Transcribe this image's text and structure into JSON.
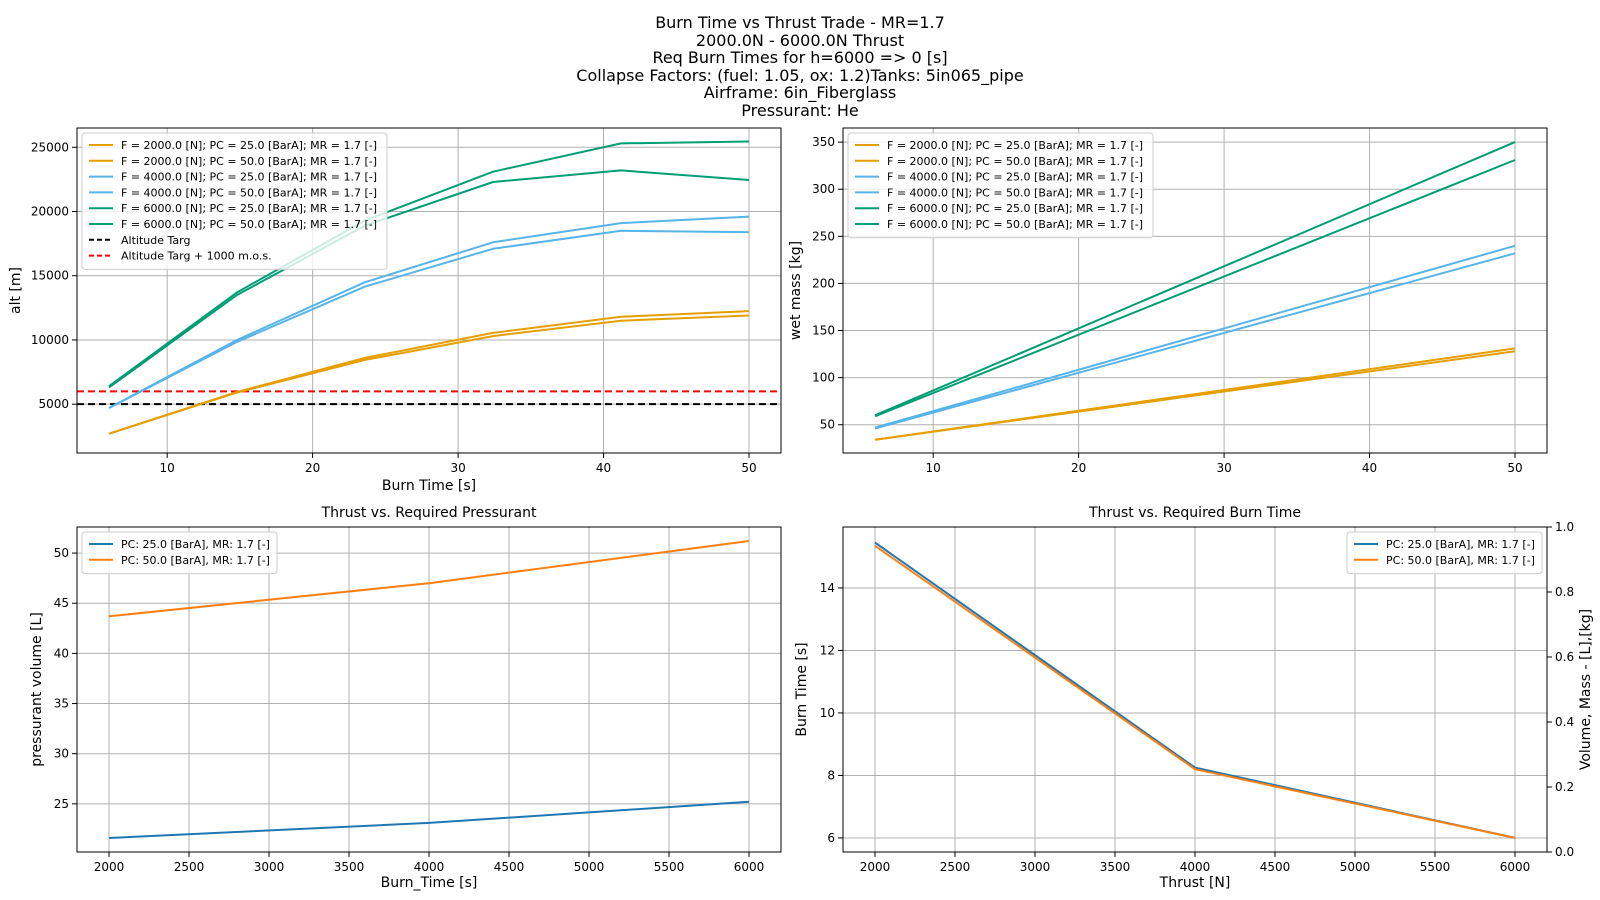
{
  "figure": {
    "suptitle_lines": [
      "Burn Time vs Thrust Trade - MR=1.7",
      "2000.0N - 6000.0N Thrust",
      "Req Burn Times for h=6000 => 0 [s]",
      "Collapse Factors: (fuel: 1.05, ox: 1.2)Tanks: 5in065_pipe",
      "Airframe: 6in_Fiberglass",
      "Pressurant: He"
    ]
  },
  "chart_data": [
    {
      "type": "line",
      "title": "",
      "xlabel": "Burn Time [s]",
      "ylabel": "alt [m]",
      "xlim": [
        3.8,
        52.2
      ],
      "ylim": [
        1200,
        26500
      ],
      "xticks": [
        10,
        20,
        30,
        40,
        50
      ],
      "yticks": [
        5000,
        10000,
        15000,
        20000,
        25000
      ],
      "grid": true,
      "legend_position": "upper left",
      "series": [
        {
          "name": "F = 2000.0 [N]; PC = 25.0 [BarA]; MR = 1.7 [-]",
          "color": "#E69F00",
          "x": [
            6,
            14.8,
            23.6,
            32.4,
            41.2,
            50
          ],
          "y": [
            2700,
            5950,
            8600,
            10550,
            11800,
            12250
          ]
        },
        {
          "name": "F = 2000.0 [N]; PC = 50.0 [BarA]; MR = 1.7 [-]",
          "color": "#E69F00",
          "x": [
            6,
            14.8,
            23.6,
            32.4,
            41.2,
            50
          ],
          "y": [
            2700,
            5900,
            8450,
            10300,
            11500,
            11900
          ]
        },
        {
          "name": "F = 4000.0 [N]; PC = 25.0 [BarA]; MR = 1.7 [-]",
          "color": "#56B4E9",
          "x": [
            6,
            14.8,
            23.6,
            32.4,
            41.2,
            50
          ],
          "y": [
            4700,
            10000,
            14500,
            17600,
            19100,
            19600
          ]
        },
        {
          "name": "F = 4000.0 [N]; PC = 50.0 [BarA]; MR = 1.7 [-]",
          "color": "#56B4E9",
          "x": [
            6,
            14.8,
            23.6,
            32.4,
            41.2,
            50
          ],
          "y": [
            4700,
            9850,
            14150,
            17100,
            18500,
            18400
          ]
        },
        {
          "name": "F = 6000.0 [N]; PC = 25.0 [BarA]; MR = 1.7 [-]",
          "color": "#009E73",
          "x": [
            6,
            14.8,
            23.6,
            32.4,
            41.2,
            50
          ],
          "y": [
            6400,
            13700,
            19300,
            23100,
            25300,
            25450
          ]
        },
        {
          "name": "F = 6000.0 [N]; PC = 50.0 [BarA]; MR = 1.7 [-]",
          "color": "#009E73",
          "x": [
            6,
            14.8,
            23.6,
            32.4,
            41.2,
            50
          ],
          "y": [
            6300,
            13500,
            18900,
            22300,
            23200,
            22450
          ]
        }
      ],
      "hlines": [
        {
          "name": "Altitude Targ",
          "y": 5000,
          "color": "#000000",
          "style": "dashed"
        },
        {
          "name": "Altitude Targ + 1000 m.o.s.",
          "y": 6000,
          "color": "#FF0000",
          "style": "dashed"
        }
      ]
    },
    {
      "type": "line",
      "title": "",
      "xlabel": "",
      "ylabel": "wet mass [kg]",
      "xlim": [
        3.8,
        52.2
      ],
      "ylim": [
        20,
        365
      ],
      "xticks": [
        10,
        20,
        30,
        40,
        50
      ],
      "yticks": [
        50,
        100,
        150,
        200,
        250,
        300,
        350
      ],
      "grid": true,
      "legend_position": "upper left",
      "series": [
        {
          "name": "F = 2000.0 [N]; PC = 25.0 [BarA]; MR = 1.7 [-]",
          "color": "#E69F00",
          "x": [
            6,
            50
          ],
          "y": [
            34,
            131
          ]
        },
        {
          "name": "F = 2000.0 [N]; PC = 50.0 [BarA]; MR = 1.7 [-]",
          "color": "#E69F00",
          "x": [
            6,
            50
          ],
          "y": [
            34,
            128
          ]
        },
        {
          "name": "F = 4000.0 [N]; PC = 25.0 [BarA]; MR = 1.7 [-]",
          "color": "#56B4E9",
          "x": [
            6,
            50
          ],
          "y": [
            47,
            240
          ]
        },
        {
          "name": "F = 4000.0 [N]; PC = 50.0 [BarA]; MR = 1.7 [-]",
          "color": "#56B4E9",
          "x": [
            6,
            50
          ],
          "y": [
            46,
            232
          ]
        },
        {
          "name": "F = 6000.0 [N]; PC = 25.0 [BarA]; MR = 1.7 [-]",
          "color": "#009E73",
          "x": [
            6,
            50
          ],
          "y": [
            60,
            350
          ]
        },
        {
          "name": "F = 6000.0 [N]; PC = 50.0 [BarA]; MR = 1.7 [-]",
          "color": "#009E73",
          "x": [
            6,
            50
          ],
          "y": [
            59,
            331
          ]
        }
      ]
    },
    {
      "type": "line",
      "title": "Thrust vs. Required Pressurant",
      "xlabel": "Burn_Time [s]",
      "ylabel": "pressurant volume [L]",
      "xlim": [
        1800,
        6200
      ],
      "ylim": [
        20.2,
        52.6
      ],
      "xticks": [
        2000,
        2500,
        3000,
        3500,
        4000,
        4500,
        5000,
        5500,
        6000
      ],
      "yticks": [
        25,
        30,
        35,
        40,
        45,
        50
      ],
      "grid": true,
      "legend_position": "upper left",
      "series": [
        {
          "name": "PC: 25.0 [BarA], MR: 1.7 [-]",
          "color": "#1F77B4",
          "x": [
            2000,
            4000,
            6000
          ],
          "y": [
            21.6,
            23.1,
            25.2
          ]
        },
        {
          "name": "PC: 50.0 [BarA], MR: 1.7 [-]",
          "color": "#FF7F0E",
          "x": [
            2000,
            4000,
            6000
          ],
          "y": [
            43.7,
            47.0,
            51.2
          ]
        }
      ]
    },
    {
      "type": "line",
      "title": "Thrust vs. Required Burn Time",
      "xlabel": "Thrust [N]",
      "ylabel": "Burn Time [s]",
      "y2label": "Volume, Mass - [L],[kg]",
      "xlim": [
        1800,
        6200
      ],
      "ylim": [
        5.55,
        15.95
      ],
      "y2lim": [
        0,
        1
      ],
      "xticks": [
        2000,
        2500,
        3000,
        3500,
        4000,
        4500,
        5000,
        5500,
        6000
      ],
      "yticks": [
        6,
        8,
        10,
        12,
        14
      ],
      "y2ticks": [
        "0.0",
        "0.2",
        "0.4",
        "0.6",
        "0.8",
        "1.0"
      ],
      "grid": true,
      "legend_position": "upper right",
      "series": [
        {
          "name": "PC: 25.0 [BarA], MR: 1.7 [-]",
          "color": "#1F77B4",
          "x": [
            2000,
            4000,
            6000
          ],
          "y": [
            15.45,
            8.25,
            6.0
          ]
        },
        {
          "name": "PC: 50.0 [BarA], MR: 1.7 [-]",
          "color": "#FF7F0E",
          "x": [
            2000,
            4000,
            6000
          ],
          "y": [
            15.35,
            8.2,
            6.0
          ]
        }
      ]
    }
  ]
}
